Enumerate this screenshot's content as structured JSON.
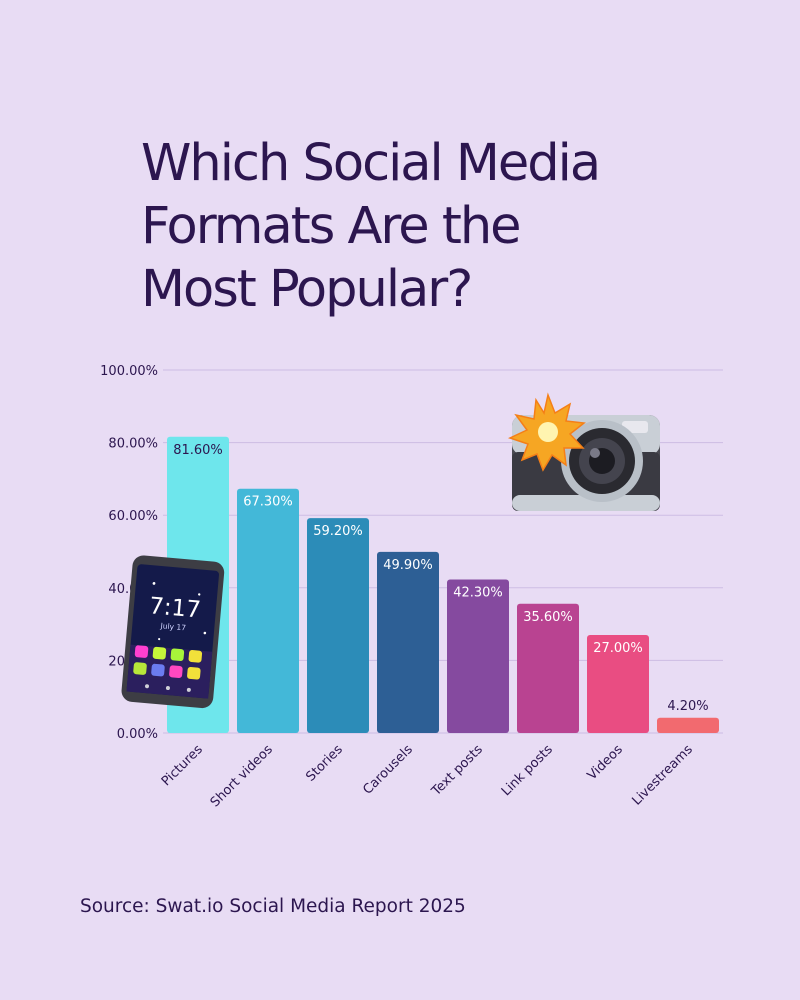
{
  "title_lines": [
    "Which Social Media",
    "Formats Are the",
    "Most Popular?"
  ],
  "source": "Source: Swat.io Social Media Report 2025",
  "chart_data": {
    "type": "bar",
    "categories": [
      "Pictures",
      "Short videos",
      "Stories",
      "Carousels",
      "Text posts",
      "Link posts",
      "Videos",
      "Livestreams"
    ],
    "values": [
      81.6,
      67.3,
      59.2,
      49.9,
      42.3,
      35.6,
      27.0,
      4.2
    ],
    "data_labels": [
      "81.60%",
      "67.30%",
      "59.20%",
      "49.90%",
      "42.30%",
      "35.60%",
      "27.00%",
      "4.20%"
    ],
    "y_ticks": [
      0,
      20,
      40,
      60,
      80,
      100
    ],
    "y_tick_labels": [
      "0.00%",
      "20.00%",
      "40.00%",
      "60.00%",
      "80.00%",
      "100.00%"
    ],
    "ylim": [
      0,
      100
    ],
    "grid": true,
    "legend": "none",
    "bar_colors": [
      "#6ee6ec",
      "#43b8d8",
      "#2c8cb8",
      "#2d5f95",
      "#854a9f",
      "#b94391",
      "#e94d82",
      "#f26a6f"
    ],
    "label_colors": [
      "#2c164f",
      "#ffffff",
      "#ffffff",
      "#ffffff",
      "#ffffff",
      "#ffffff",
      "#ffffff",
      "#2c164f"
    ]
  },
  "decorations": {
    "phone": {
      "icon": "smartphone-icon",
      "time": "7:17",
      "date": "July 17"
    },
    "camera": {
      "icon": "camera-flash-icon"
    }
  }
}
